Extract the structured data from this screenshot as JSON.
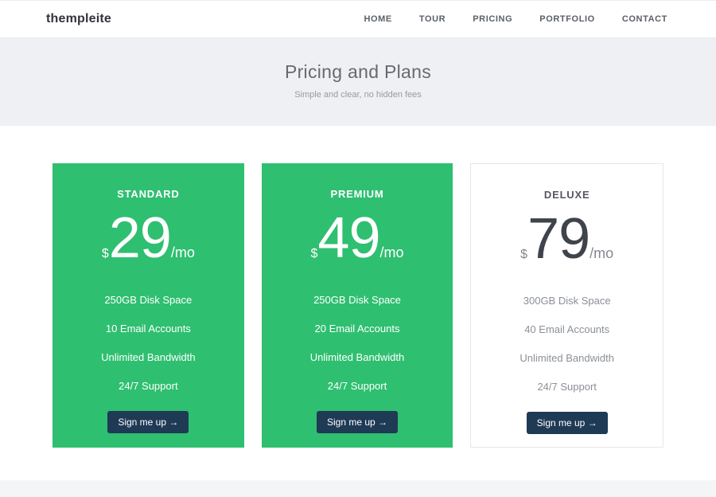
{
  "header": {
    "logo": "thempleite",
    "nav": [
      "HOME",
      "TOUR",
      "PRICING",
      "PORTFOLIO",
      "CONTACT"
    ]
  },
  "hero": {
    "title": "Pricing and Plans",
    "subtitle": "Simple and clear, no hidden fees"
  },
  "plans": [
    {
      "name": "STANDARD",
      "currency": "$",
      "amount": "29",
      "period": "/mo",
      "features": [
        "250GB Disk Space",
        "10 Email Accounts",
        "Unlimited Bandwidth",
        "24/7 Support"
      ],
      "cta": "Sign me up →",
      "highlighted": true
    },
    {
      "name": "PREMIUM",
      "currency": "$",
      "amount": "49",
      "period": "/mo",
      "features": [
        "250GB Disk Space",
        "20 Email Accounts",
        "Unlimited Bandwidth",
        "24/7 Support"
      ],
      "cta": "Sign me up →",
      "highlighted": true
    },
    {
      "name": "DELUXE",
      "currency": "$",
      "amount": "79",
      "period": "/mo",
      "features": [
        "300GB Disk Space",
        "40 Email Accounts",
        "Unlimited Bandwidth",
        "24/7 Support"
      ],
      "cta": "Sign me up →",
      "highlighted": false
    }
  ],
  "colors": {
    "accent_green": "#2fbf71",
    "button_navy": "#1f3a55",
    "hero_bg": "#eef0f3",
    "footer_bg": "#f3f5f7"
  }
}
